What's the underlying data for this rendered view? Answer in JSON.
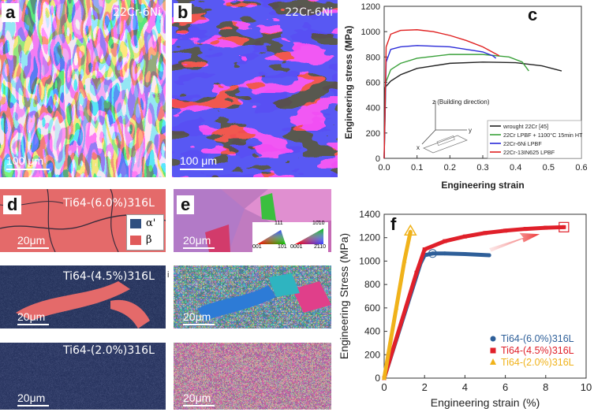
{
  "panels": {
    "a": {
      "label": "a",
      "alloy": "22Cr-6Ni",
      "scale": "100 μm"
    },
    "b": {
      "label": "b",
      "alloy": "22Cr-6Ni",
      "scale": "100 μm"
    },
    "c": {
      "label": "c"
    },
    "d": {
      "label": "d",
      "scale": "20μm",
      "rows": [
        "Ti64-(6.0%)316L",
        "Ti64-(4.5%)316L",
        "Ti64-(2.0%)316L"
      ],
      "legend": [
        {
          "name": "α'",
          "color": "#2f4f80"
        },
        {
          "name": "β",
          "color": "#e05a5a"
        }
      ]
    },
    "e": {
      "label": "e",
      "scale": "20μm",
      "ipf_left": {
        "top": "111",
        "bl": "001",
        "br": "101"
      },
      "ipf_right": {
        "top": "10̄10",
        "bl": "0001",
        "br": "2̄110"
      }
    },
    "f": {
      "label": "f"
    },
    "marker_i": "i"
  },
  "chart_data": [
    {
      "type": "line",
      "xlabel": "Engineering strain",
      "ylabel": "Engineering stress (MPa)",
      "xlim": [
        0.0,
        0.6
      ],
      "ylim": [
        0,
        1200
      ],
      "xticks": [
        "0.0",
        "0.1",
        "0.2",
        "0.3",
        "0.4",
        "0.5",
        "0.6"
      ],
      "yticks": [
        "0",
        "200",
        "400",
        "600",
        "800",
        "1000",
        "1200"
      ],
      "legend_position": "bottom-right",
      "inset": {
        "z_label": "z (Building direction)",
        "y_label": "y",
        "x_label": "x"
      },
      "series": [
        {
          "name": "wrought 22Cr [45]",
          "color": "#222222",
          "x": [
            0,
            0.003,
            0.02,
            0.05,
            0.1,
            0.2,
            0.3,
            0.4,
            0.48,
            0.54
          ],
          "y": [
            0,
            560,
            610,
            660,
            710,
            750,
            760,
            755,
            730,
            690
          ]
        },
        {
          "name": "22Cr LPBF + 1100°C 15min HT",
          "color": "#3aa13a",
          "x": [
            0,
            0.005,
            0.02,
            0.05,
            0.1,
            0.2,
            0.3,
            0.38,
            0.42,
            0.44
          ],
          "y": [
            0,
            600,
            700,
            750,
            790,
            820,
            820,
            800,
            760,
            690
          ]
        },
        {
          "name": "22Cr-6Ni LPBF",
          "color": "#2a2ad8",
          "x": [
            0,
            0.006,
            0.02,
            0.05,
            0.1,
            0.2,
            0.3,
            0.33,
            0.34
          ],
          "y": [
            0,
            760,
            860,
            880,
            890,
            880,
            840,
            810,
            790
          ]
        },
        {
          "name": "22Cr-13IN625 LPBF",
          "color": "#e02020",
          "x": [
            0,
            0.006,
            0.02,
            0.05,
            0.1,
            0.15,
            0.2,
            0.25,
            0.3,
            0.35
          ],
          "y": [
            0,
            880,
            980,
            1010,
            1015,
            1000,
            970,
            930,
            880,
            810
          ]
        }
      ]
    },
    {
      "type": "scatter",
      "xlabel": "Engineering strain (%)",
      "ylabel": "Engineering Stress (MPa)",
      "xlim": [
        0,
        10
      ],
      "ylim": [
        0,
        1400
      ],
      "xticks": [
        "0",
        "2",
        "4",
        "6",
        "8",
        "10"
      ],
      "yticks": [
        "0",
        "200",
        "400",
        "600",
        "800",
        "1000",
        "1200",
        "1400"
      ],
      "legend_position": "bottom-right",
      "series": [
        {
          "name": "Ti64-(6.0%)316L",
          "color": "#2e5f99",
          "marker": "circle",
          "x": [
            0,
            1.8,
            2.0,
            2.4,
            3.0,
            4.0,
            5.2
          ],
          "y": [
            0,
            980,
            1050,
            1065,
            1065,
            1060,
            1050
          ]
        },
        {
          "name": "Ti64-(4.5%)316L",
          "color": "#e0202a",
          "marker": "square",
          "x": [
            0,
            1.6,
            2.0,
            3.0,
            4.0,
            5.0,
            6.0,
            7.0,
            8.0,
            8.9
          ],
          "y": [
            0,
            900,
            1100,
            1170,
            1210,
            1240,
            1260,
            1275,
            1285,
            1290
          ]
        },
        {
          "name": "Ti64-(2.0%)316L",
          "color": "#f0b21a",
          "marker": "triangle",
          "x": [
            0,
            0.6,
            1.0,
            1.3
          ],
          "y": [
            0,
            600,
            1000,
            1250
          ]
        }
      ]
    }
  ]
}
